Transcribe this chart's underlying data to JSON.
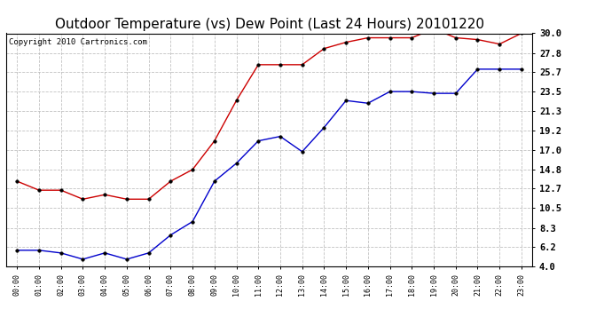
{
  "title": "Outdoor Temperature (vs) Dew Point (Last 24 Hours) 20101220",
  "copyright": "Copyright 2010 Cartronics.com",
  "x_labels": [
    "00:00",
    "01:00",
    "02:00",
    "03:00",
    "04:00",
    "05:00",
    "06:00",
    "07:00",
    "08:00",
    "09:00",
    "10:00",
    "11:00",
    "12:00",
    "13:00",
    "14:00",
    "15:00",
    "16:00",
    "17:00",
    "18:00",
    "19:00",
    "20:00",
    "21:00",
    "22:00",
    "23:00"
  ],
  "temp_data": [
    13.5,
    12.5,
    12.5,
    11.5,
    12.0,
    11.5,
    11.5,
    13.5,
    14.8,
    18.0,
    22.5,
    26.5,
    26.5,
    26.5,
    28.3,
    29.0,
    29.5,
    29.5,
    29.5,
    30.5,
    29.5,
    29.3,
    28.8,
    30.0
  ],
  "dew_data": [
    5.8,
    5.8,
    5.5,
    4.8,
    5.5,
    4.8,
    5.5,
    7.5,
    9.0,
    13.5,
    15.5,
    18.0,
    18.5,
    16.8,
    19.5,
    22.5,
    22.2,
    23.5,
    23.5,
    23.3,
    23.3,
    26.0,
    26.0,
    26.0
  ],
  "temp_color": "#CC0000",
  "dew_color": "#0000CC",
  "y_ticks": [
    4.0,
    6.2,
    8.3,
    10.5,
    12.7,
    14.8,
    17.0,
    19.2,
    21.3,
    23.5,
    25.7,
    27.8,
    30.0
  ],
  "y_min": 4.0,
  "y_max": 30.0,
  "background_color": "#ffffff",
  "grid_color": "#bbbbbb",
  "title_fontsize": 11,
  "copyright_fontsize": 6.5
}
